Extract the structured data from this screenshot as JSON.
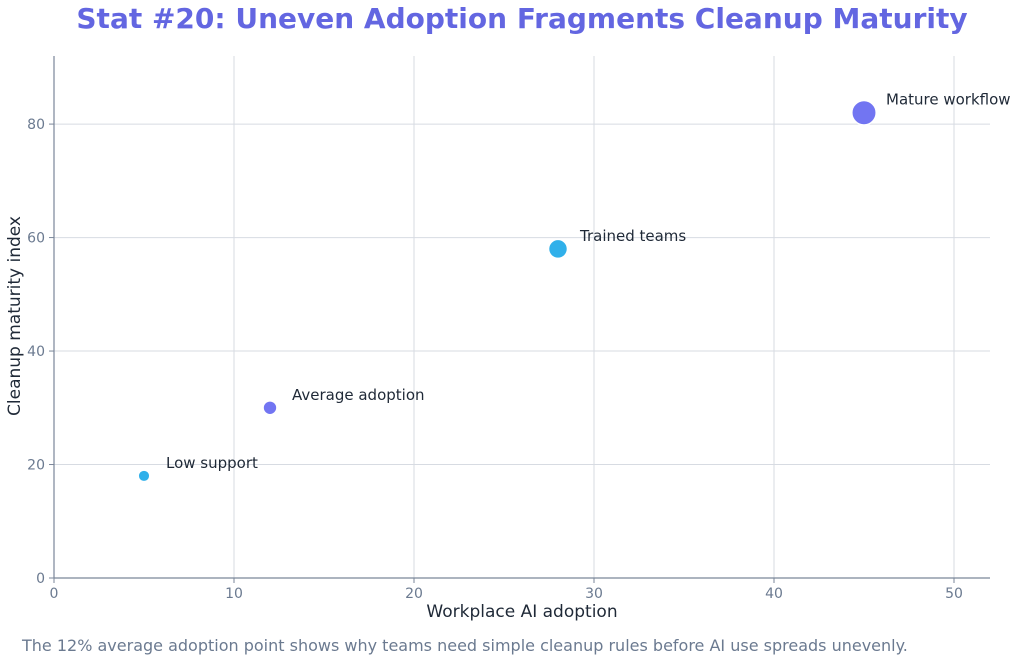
{
  "chart_data": {
    "type": "scatter",
    "title": "Stat #20: Uneven Adoption Fragments Cleanup Maturity",
    "xlabel": "Workplace AI adoption",
    "ylabel": "Cleanup maturity index",
    "xlim": [
      0,
      52
    ],
    "ylim": [
      0,
      92
    ],
    "x_ticks": [
      0,
      10,
      20,
      30,
      40,
      50
    ],
    "y_ticks": [
      0,
      20,
      40,
      60,
      80
    ],
    "grid": true,
    "points": [
      {
        "label": "Low support",
        "x": 5,
        "y": 18,
        "color": "#1aa7e8"
      },
      {
        "label": "Average adoption",
        "x": 12,
        "y": 30,
        "color": "#6366f1"
      },
      {
        "label": "Trained teams",
        "x": 28,
        "y": 58,
        "color": "#1aa7e8"
      },
      {
        "label": "Mature workflow",
        "x": 45,
        "y": 82,
        "color": "#6366f1"
      }
    ]
  },
  "caption": "The 12% average adoption point shows why teams need simple cleanup rules before AI use spreads unevenly."
}
